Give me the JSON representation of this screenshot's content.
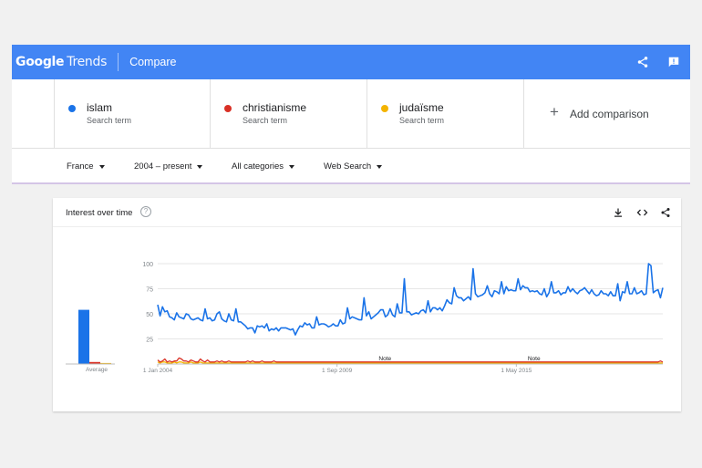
{
  "header": {
    "logo_google": "Google",
    "logo_trends": "Trends",
    "title": "Compare",
    "color": "#4285f4"
  },
  "terms": [
    {
      "name": "islam",
      "subtitle": "Search term",
      "color": "#1a73e8"
    },
    {
      "name": "christianisme",
      "subtitle": "Search term",
      "color": "#d93025"
    },
    {
      "name": "judaïsme",
      "subtitle": "Search term",
      "color": "#f4b400"
    }
  ],
  "add_comparison": "Add comparison",
  "filters": {
    "region": "France",
    "period": "2004 – present",
    "category": "All categories",
    "search_type": "Web Search"
  },
  "card": {
    "title": "Interest over time",
    "help": "?"
  },
  "chart_data": {
    "type": "line",
    "y_ticks": [
      "100",
      "75",
      "50",
      "25"
    ],
    "ylim": [
      0,
      100
    ],
    "x_tick_labels": [
      "1 Jan 2004",
      "1 Sep 2009",
      "1 May 2015"
    ],
    "notes": [
      "Note",
      "Note"
    ],
    "average_label": "Average",
    "averages": [
      {
        "term": "islam",
        "value": 54
      },
      {
        "term": "christianisme",
        "value": 2
      },
      {
        "term": "judaïsme",
        "value": 1
      }
    ],
    "series": [
      {
        "name": "islam",
        "values": [
          59,
          48,
          57,
          52,
          53,
          47,
          46,
          44,
          51,
          47,
          46,
          45,
          50,
          49,
          45,
          44,
          45,
          46,
          44,
          43,
          55,
          45,
          46,
          43,
          44,
          50,
          52,
          45,
          43,
          42,
          50,
          44,
          43,
          55,
          42,
          42,
          40,
          38,
          35,
          36,
          36,
          31,
          38,
          37,
          38,
          36,
          40,
          33,
          35,
          34,
          36,
          33,
          36,
          36,
          36,
          35,
          34,
          35,
          29,
          34,
          38,
          37,
          41,
          39,
          40,
          36,
          36,
          47,
          39,
          40,
          40,
          39,
          37,
          38,
          40,
          38,
          38,
          44,
          40,
          41,
          56,
          45,
          47,
          46,
          45,
          44,
          44,
          66,
          48,
          52,
          45,
          47,
          49,
          51,
          54,
          54,
          47,
          49,
          55,
          49,
          47,
          60,
          51,
          51,
          85,
          52,
          52,
          49,
          50,
          51,
          50,
          53,
          54,
          51,
          63,
          52,
          56,
          56,
          54,
          56,
          53,
          58,
          64,
          61,
          60,
          76,
          68,
          66,
          66,
          63,
          65,
          67,
          64,
          95,
          70,
          67,
          68,
          69,
          71,
          78,
          70,
          67,
          73,
          72,
          70,
          82,
          70,
          77,
          73,
          74,
          73,
          73,
          85,
          74,
          78,
          76,
          76,
          72,
          73,
          72,
          73,
          70,
          69,
          75,
          67,
          71,
          82,
          71,
          71,
          73,
          69,
          71,
          71,
          77,
          72,
          75,
          72,
          70,
          73,
          74,
          76,
          73,
          70,
          74,
          70,
          68,
          69,
          73,
          70,
          70,
          68,
          72,
          68,
          68,
          80,
          63,
          72,
          71,
          82,
          70,
          70,
          76,
          70,
          71,
          73,
          69,
          70,
          100,
          98,
          71,
          73,
          74,
          66,
          76
        ]
      },
      {
        "name": "christianisme",
        "values": [
          4,
          2,
          3,
          5,
          2,
          3,
          2,
          3,
          3,
          6,
          5,
          3,
          3,
          2,
          4,
          3,
          2,
          2,
          5,
          3,
          2,
          4,
          2,
          2,
          2,
          3,
          2,
          3,
          2,
          2,
          3,
          2,
          2,
          2,
          2,
          2,
          2,
          2,
          3,
          2,
          3,
          2,
          2,
          2,
          3,
          2,
          2,
          2,
          2,
          3,
          2,
          2,
          2,
          2,
          2,
          2,
          2,
          2,
          2,
          2,
          2,
          2,
          2,
          2,
          2,
          2,
          2,
          2,
          2,
          2,
          2,
          2,
          2,
          2,
          2,
          2,
          2,
          2,
          2,
          2,
          2,
          2,
          2,
          2,
          2,
          2,
          2,
          2,
          2,
          2,
          2,
          2,
          2,
          2,
          2,
          2,
          2,
          2,
          2,
          2,
          2,
          2,
          2,
          2,
          2,
          2,
          2,
          2,
          2,
          2,
          2,
          2,
          2,
          2,
          2,
          2,
          2,
          2,
          2,
          2,
          2,
          2,
          2,
          2,
          2,
          2,
          2,
          2,
          2,
          2,
          2,
          2,
          2,
          2,
          2,
          2,
          2,
          2,
          2,
          2,
          2,
          2,
          2,
          2,
          2,
          2,
          2,
          2,
          2,
          2,
          2,
          2,
          2,
          2,
          2,
          2,
          2,
          2,
          2,
          2,
          2,
          2,
          2,
          2,
          2,
          2,
          2,
          2,
          2,
          2,
          2,
          2,
          2,
          2,
          2,
          2,
          2,
          2,
          2,
          2,
          2,
          2,
          2,
          2,
          2,
          2,
          2,
          2,
          2,
          2,
          2,
          2,
          2,
          2,
          2,
          2,
          2,
          2,
          2,
          2,
          2,
          2,
          2,
          2,
          2,
          2,
          2,
          2,
          2,
          2,
          2,
          2,
          3,
          2
        ]
      },
      {
        "name": "judaïsme",
        "values": [
          2,
          1,
          2,
          2,
          1,
          1,
          1,
          2,
          1,
          2,
          2,
          1,
          1,
          1,
          2,
          1,
          1,
          1,
          2,
          1,
          1,
          1,
          1,
          1,
          1,
          1,
          1,
          1,
          1,
          1,
          1,
          1,
          1,
          1,
          1,
          1,
          1,
          1,
          1,
          1,
          1,
          1,
          1,
          1,
          1,
          1,
          1,
          1,
          1,
          1,
          1,
          1,
          1,
          1,
          1,
          1,
          1,
          1,
          1,
          1,
          1,
          1,
          1,
          1,
          1,
          1,
          1,
          1,
          1,
          1,
          1,
          1,
          1,
          1,
          1,
          1,
          1,
          1,
          1,
          1,
          1,
          1,
          1,
          1,
          1,
          1,
          1,
          1,
          1,
          1,
          1,
          1,
          1,
          1,
          1,
          1,
          1,
          1,
          1,
          1,
          1,
          1,
          1,
          1,
          1,
          1,
          1,
          1,
          1,
          1,
          1,
          1,
          1,
          1,
          1,
          1,
          1,
          1,
          1,
          1,
          1,
          1,
          1,
          1,
          1,
          1,
          1,
          1,
          1,
          1,
          1,
          1,
          1,
          1,
          1,
          1,
          1,
          1,
          1,
          1,
          1,
          1,
          1,
          1,
          1,
          1,
          1,
          1,
          1,
          1,
          1,
          1,
          1,
          1,
          1,
          1,
          1,
          1,
          1,
          1,
          1,
          1,
          1,
          1,
          1,
          1,
          1,
          1,
          1,
          1,
          1,
          1,
          1,
          1,
          1,
          1,
          1,
          1,
          1,
          1,
          1,
          1,
          1,
          1,
          1,
          1,
          1,
          1,
          1,
          1,
          1,
          1,
          1,
          1,
          1,
          1,
          1,
          1,
          1,
          1,
          1,
          1,
          1,
          1,
          1,
          1,
          1,
          1,
          1,
          1,
          1,
          1,
          1,
          1
        ]
      }
    ]
  }
}
